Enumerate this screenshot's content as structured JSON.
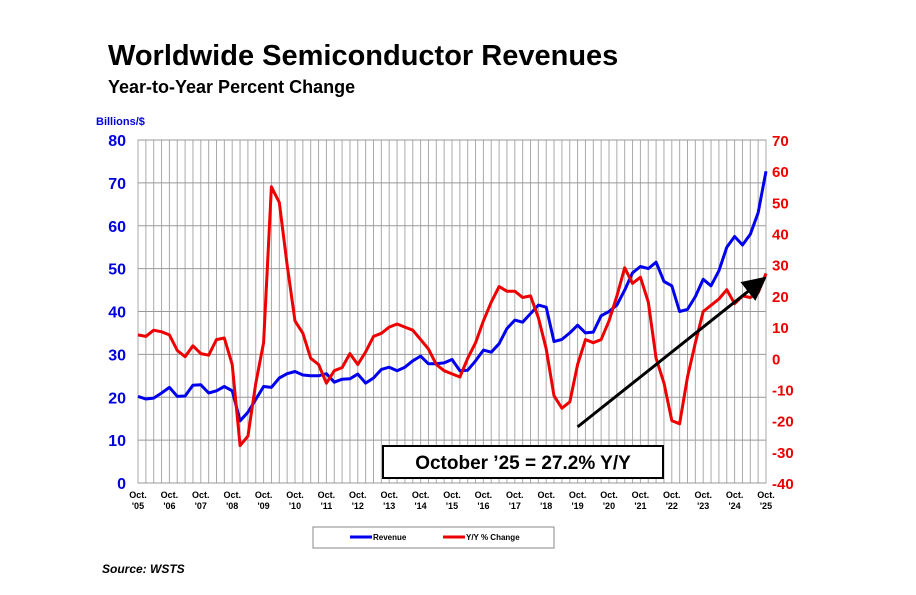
{
  "chart_data": {
    "type": "line",
    "title": "Worldwide Semiconductor Revenues",
    "subtitle": "Year-to-Year Percent Change",
    "ylabel_left": "Billions/$",
    "source": "Source: WSTS",
    "annotation": "October ’25 = 27.2% Y/Y",
    "y_left": {
      "range": [
        0,
        80
      ],
      "ticks": [
        0,
        10,
        20,
        30,
        40,
        50,
        60,
        70,
        80
      ],
      "color": "#0000dd"
    },
    "y_right": {
      "range": [
        -40,
        70
      ],
      "ticks": [
        -40,
        -30,
        -20,
        -10,
        0,
        10,
        20,
        30,
        40,
        50,
        60,
        70
      ],
      "color": "#ee0000"
    },
    "x_tick_labels": [
      [
        "Oct.",
        "'05"
      ],
      [
        "Oct.",
        "'06"
      ],
      [
        "Oct.",
        "'07"
      ],
      [
        "Oct.",
        "'08"
      ],
      [
        "Oct.",
        "'09"
      ],
      [
        "Oct.",
        "'10"
      ],
      [
        "Oct.",
        "'11"
      ],
      [
        "Oct.",
        "'12"
      ],
      [
        "Oct.",
        "'13"
      ],
      [
        "Oct.",
        "'14"
      ],
      [
        "Oct.",
        "'15"
      ],
      [
        "Oct.",
        "'16"
      ],
      [
        "Oct.",
        "'17"
      ],
      [
        "Oct.",
        "'18"
      ],
      [
        "Oct.",
        "'19"
      ],
      [
        "Oct.",
        "'20"
      ],
      [
        "Oct.",
        "'21"
      ],
      [
        "Oct.",
        "'22"
      ],
      [
        "Oct.",
        "'23"
      ],
      [
        "Oct.",
        "'24"
      ],
      [
        "Oct.",
        "'25"
      ]
    ],
    "x_start": "Oct 2005",
    "x_step": "quarter",
    "grid": true,
    "legend_position": "bottom",
    "series": [
      {
        "name": "Revenue",
        "axis": "left",
        "color": "#0000ee",
        "values": [
          20.2,
          19.6,
          19.8,
          21,
          22.3,
          20.2,
          20.3,
          22.8,
          22.9,
          21,
          21.5,
          22.5,
          21.5,
          14.5,
          16.5,
          19.5,
          22.5,
          22.3,
          24.5,
          25.5,
          26,
          25.2,
          25,
          25,
          25.5,
          23.5,
          24.2,
          24.3,
          25.4,
          23.3,
          24.5,
          26.5,
          27,
          26.2,
          27,
          28.5,
          29.6,
          27.8,
          27.8,
          28,
          28.8,
          26.2,
          26.3,
          28.5,
          31,
          30.5,
          32.5,
          36,
          38,
          37.5,
          39.5,
          41.5,
          41,
          33,
          33.5,
          35,
          36.8,
          35,
          35.2,
          39,
          40,
          41.5,
          45,
          49,
          50.5,
          50,
          51.5,
          47,
          46,
          40,
          40.5,
          43.5,
          47.5,
          46,
          49.5,
          55,
          57.5,
          55.5,
          58,
          63,
          72.7
        ]
      },
      {
        "name": "Y/Y % Change",
        "axis": "right",
        "color": "#ee0000",
        "values": [
          7.5,
          7,
          9,
          8.5,
          7.5,
          2.5,
          0.5,
          4,
          1.5,
          1,
          6,
          6.5,
          -2,
          -28,
          -25,
          -8,
          5,
          55,
          50,
          30,
          12,
          8,
          0,
          -2,
          -8,
          -4,
          -3,
          1.5,
          -2,
          2,
          7,
          8,
          10,
          11,
          10,
          9,
          6,
          3,
          -2,
          -4,
          -5,
          -6,
          0,
          5,
          12,
          18,
          23,
          21.5,
          21.5,
          19.5,
          20,
          13,
          3,
          -12,
          -16,
          -14,
          -2,
          6,
          5,
          6,
          12,
          20,
          29,
          24,
          26,
          18,
          0,
          -8,
          -20,
          -21,
          -6,
          5,
          15,
          17,
          19,
          22,
          17.5,
          20,
          19.5,
          21,
          27.2
        ]
      }
    ],
    "trend_arrow": {
      "from": {
        "x": "Oct 2019",
        "y_right": -22
      },
      "to": {
        "x": "Oct 2025",
        "y_right": 25
      }
    }
  }
}
